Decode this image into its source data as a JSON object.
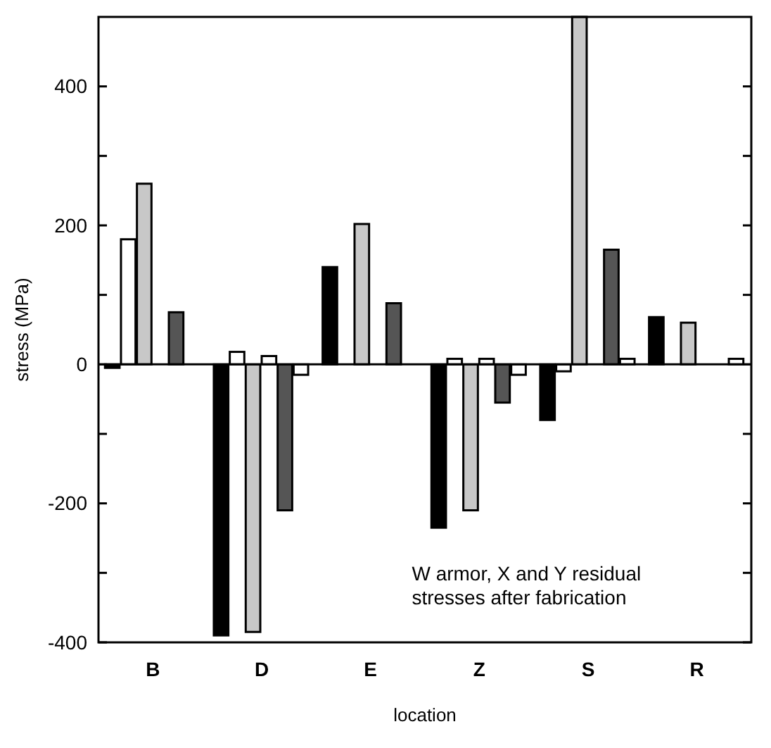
{
  "chart_data": {
    "type": "bar",
    "xlabel": "location",
    "ylabel": "stress (MPa)",
    "categories": [
      "B",
      "D",
      "E",
      "Z",
      "S",
      "R"
    ],
    "series": [
      {
        "color": "#000000",
        "values": [
          -5,
          -390,
          140,
          -235,
          -80,
          68
        ]
      },
      {
        "color": "#ffffff",
        "values": [
          180,
          18,
          null,
          8,
          -10,
          null
        ]
      },
      {
        "color": "#c8c8c8",
        "values": [
          260,
          -385,
          202,
          -210,
          500,
          60
        ]
      },
      {
        "color": "#ffffff",
        "values": [
          null,
          12,
          null,
          8,
          null,
          null
        ]
      },
      {
        "color": "#555555",
        "values": [
          75,
          -210,
          88,
          -55,
          165,
          null
        ]
      },
      {
        "color": "#ffffff",
        "values": [
          null,
          -15,
          null,
          -15,
          8,
          8
        ]
      }
    ],
    "ylim": [
      -400,
      500
    ],
    "yticks": [
      -400,
      {
        "value": -300,
        "label": null
      },
      -200,
      {
        "value": -100,
        "label": null
      },
      0,
      {
        "value": 100,
        "label": null
      },
      200,
      {
        "value": 300,
        "label": null
      },
      400
    ],
    "annotations": [
      "W armor, X and Y residual\nstresses after fabrication"
    ]
  }
}
